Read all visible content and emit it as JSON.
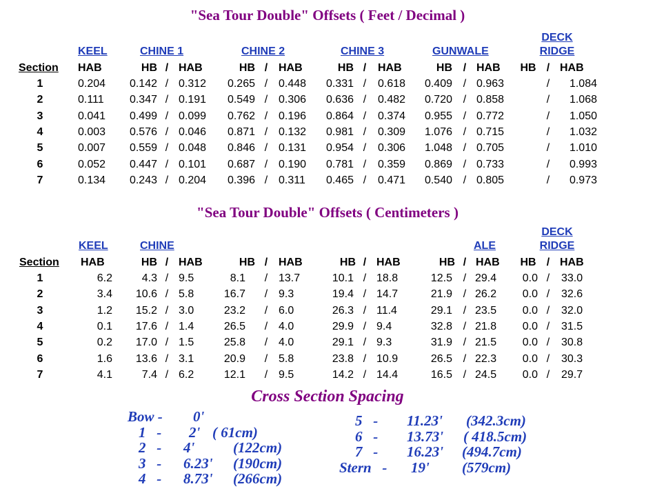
{
  "feet_table": {
    "title": "\"Sea Tour Double\" Offsets ( Feet / Decimal )",
    "groups": [
      "KEEL",
      "CHINE 1",
      "CHINE 2",
      "CHINE 3",
      "GUNWALE",
      "DECK",
      "RIDGE"
    ],
    "section_label": "Section",
    "col_labels": [
      "HAB",
      "HB",
      "/",
      "HAB",
      "HB",
      "/",
      "HAB",
      "HB",
      "/",
      "HAB",
      "HB",
      "/",
      "HAB",
      "HB",
      "/",
      "HAB"
    ],
    "rows": [
      [
        "1",
        "0.204",
        "0.142",
        "/",
        "0.312",
        "0.265",
        "/",
        "0.448",
        "0.331",
        "/",
        "0.618",
        "0.409",
        "/",
        "0.963",
        "",
        "/",
        "1.084"
      ],
      [
        "2",
        "0.111",
        "0.347",
        "/",
        "0.191",
        "0.549",
        "/",
        "0.306",
        "0.636",
        "/",
        "0.482",
        "0.720",
        "/",
        "0.858",
        "",
        "/",
        "1.068"
      ],
      [
        "3",
        "0.041",
        "0.499",
        "/",
        "0.099",
        "0.762",
        "/",
        "0.196",
        "0.864",
        "/",
        "0.374",
        "0.955",
        "/",
        "0.772",
        "",
        "/",
        "1.050"
      ],
      [
        "4",
        "0.003",
        "0.576",
        "/",
        "0.046",
        "0.871",
        "/",
        "0.132",
        "0.981",
        "/",
        "0.309",
        "1.076",
        "/",
        "0.715",
        "",
        "/",
        "1.032"
      ],
      [
        "5",
        "0.007",
        "0.559",
        "/",
        "0.048",
        "0.846",
        "/",
        "0.131",
        "0.954",
        "/",
        "0.306",
        "1.048",
        "/",
        "0.705",
        "",
        "/",
        "1.010"
      ],
      [
        "6",
        "0.052",
        "0.447",
        "/",
        "0.101",
        "0.687",
        "/",
        "0.190",
        "0.781",
        "/",
        "0.359",
        "0.869",
        "/",
        "0.733",
        "",
        "/",
        "0.993"
      ],
      [
        "7",
        "0.134",
        "0.243",
        "/",
        "0.204",
        "0.396",
        "/",
        "0.311",
        "0.465",
        "/",
        "0.471",
        "0.540",
        "/",
        "0.805",
        "",
        "/",
        "0.973"
      ]
    ]
  },
  "cm_table": {
    "title": "\"Sea Tour Double\" Offsets ( Centimeters )",
    "groups": [
      "KEEL",
      "CHINE",
      "ALE",
      "DECK",
      "RIDGE"
    ],
    "section_label": "Section",
    "col_labels": [
      "HAB",
      "HB",
      "/",
      "HAB",
      "HB",
      "/",
      "HAB",
      "HB",
      "/",
      "HAB",
      "HB",
      "/",
      "HAB",
      "HB",
      "/",
      "HAB"
    ],
    "rows": [
      [
        "1",
        "6.2",
        "4.3",
        "/",
        "9.5",
        "8.1",
        "/",
        "13.7",
        "10.1",
        "/",
        "18.8",
        "12.5",
        "/",
        "29.4",
        "0.0",
        "/",
        "33.0"
      ],
      [
        "2",
        "3.4",
        "10.6",
        "/",
        "5.8",
        "16.7",
        "/",
        "9.3",
        "19.4",
        "/",
        "14.7",
        "21.9",
        "/",
        "26.2",
        "0.0",
        "/",
        "32.6"
      ],
      [
        "3",
        "1.2",
        "15.2",
        "/",
        "3.0",
        "23.2",
        "/",
        "6.0",
        "26.3",
        "/",
        "11.4",
        "29.1",
        "/",
        "23.5",
        "0.0",
        "/",
        "32.0"
      ],
      [
        "4",
        "0.1",
        "17.6",
        "/",
        "1.4",
        "26.5",
        "/",
        "4.0",
        "29.9",
        "/",
        "9.4",
        "32.8",
        "/",
        "21.8",
        "0.0",
        "/",
        "31.5"
      ],
      [
        "5",
        "0.2",
        "17.0",
        "/",
        "1.5",
        "25.8",
        "/",
        "4.0",
        "29.1",
        "/",
        "9.3",
        "31.9",
        "/",
        "21.5",
        "0.0",
        "/",
        "30.8"
      ],
      [
        "6",
        "1.6",
        "13.6",
        "/",
        "3.1",
        "20.9",
        "/",
        "5.8",
        "23.8",
        "/",
        "10.9",
        "26.5",
        "/",
        "22.3",
        "0.0",
        "/",
        "30.3"
      ],
      [
        "7",
        "4.1",
        "7.4",
        "/",
        "6.2",
        "12.1",
        "/",
        "9.5",
        "14.2",
        "/",
        "14.4",
        "16.5",
        "/",
        "24.5",
        "0.0",
        "/",
        "29.7"
      ]
    ]
  },
  "spacing": {
    "title": "Cross Section Spacing",
    "left": [
      [
        "Bow -",
        "0'",
        ""
      ],
      [
        "1   -",
        "2'",
        "( 61cm)"
      ],
      [
        "2   -",
        "4'",
        "(122cm)"
      ],
      [
        "3   -",
        "6.23'",
        "(190cm)"
      ],
      [
        "4   -",
        "8.73'",
        "(266cm)"
      ]
    ],
    "right": [
      [
        "5   -",
        "11.23'",
        "(342.3cm)"
      ],
      [
        "6   -",
        "13.73'",
        "( 418.5cm)"
      ],
      [
        "7   -",
        "16.23'",
        "(494.7cm)"
      ],
      [
        "Stern   -",
        "19'",
        "(579cm)"
      ]
    ]
  },
  "colors": {
    "title": "#800080",
    "header_blue": "#1f3cb8",
    "text": "#000000"
  }
}
